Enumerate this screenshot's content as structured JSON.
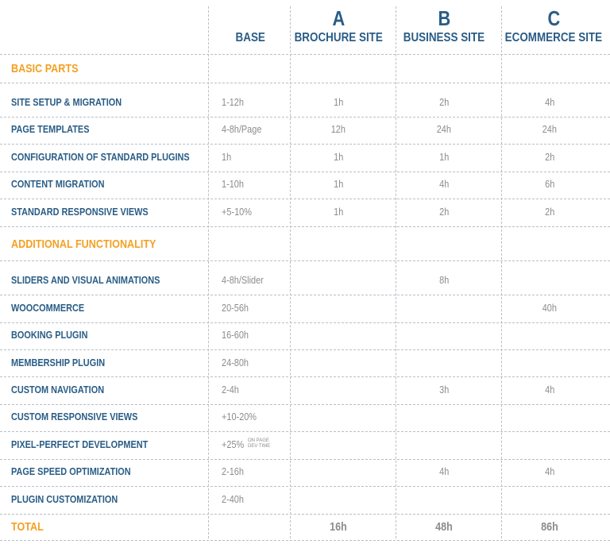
{
  "header": {
    "base_label": "BASE",
    "columns": [
      {
        "letter": "A",
        "label": "BROCHURE SITE"
      },
      {
        "letter": "B",
        "label": "BUSINESS SITE"
      },
      {
        "letter": "C",
        "label": "ECOMMERCE SITE"
      }
    ]
  },
  "sections": [
    {
      "title": "BASIC PARTS",
      "rows": [
        {
          "name": "SITE SETUP & MIGRATION",
          "base": "1-12h",
          "a": "1h",
          "b": "2h",
          "c": "4h"
        },
        {
          "name": "PAGE TEMPLATES",
          "base": "4-8h/Page",
          "a": "12h",
          "b": "24h",
          "c": "24h"
        },
        {
          "name": "CONFIGURATION OF STANDARD PLUGINS",
          "base": "1h",
          "a": "1h",
          "b": "1h",
          "c": "2h"
        },
        {
          "name": "CONTENT MIGRATION",
          "base": "1-10h",
          "a": "1h",
          "b": "4h",
          "c": "6h"
        },
        {
          "name": "STANDARD RESPONSIVE VIEWS",
          "base": "+5-10%",
          "a": "1h",
          "b": "2h",
          "c": "2h"
        }
      ]
    },
    {
      "title": "ADDITIONAL FUNCTIONALITY",
      "rows": [
        {
          "name": "SLIDERS AND VISUAL ANIMATIONS",
          "base": "4-8h/Slider",
          "a": "",
          "b": "8h",
          "c": ""
        },
        {
          "name": "WOOCOMMERCE",
          "base": "20-56h",
          "a": "",
          "b": "",
          "c": "40h"
        },
        {
          "name": "BOOKING PLUGIN",
          "base": "16-60h",
          "a": "",
          "b": "",
          "c": ""
        },
        {
          "name": "MEMBERSHIP PLUGIN",
          "base": "24-80h",
          "a": "",
          "b": "",
          "c": ""
        },
        {
          "name": "CUSTOM NAVIGATION",
          "base": "2-4h",
          "a": "",
          "b": "3h",
          "c": "4h"
        },
        {
          "name": "CUSTOM RESPONSIVE VIEWS",
          "base": "+10-20%",
          "a": "",
          "b": "",
          "c": ""
        },
        {
          "name": "PIXEL-PERFECT DEVELOPMENT",
          "base": "+25%",
          "note_line1": "ON PAGE",
          "note_line2": "DEV TIME",
          "a": "",
          "b": "",
          "c": ""
        },
        {
          "name": "PAGE SPEED OPTIMIZATION",
          "base": "2-16h",
          "a": "",
          "b": "4h",
          "c": "4h"
        },
        {
          "name": "PLUGIN CUSTOMIZATION",
          "base": "2-40h",
          "a": "",
          "b": "",
          "c": ""
        }
      ]
    }
  ],
  "total": {
    "label": "TOTAL",
    "a": "16h",
    "b": "48h",
    "c": "86h"
  },
  "colors": {
    "header_blue": "#2a5d86",
    "section_orange": "#f4a024",
    "value_gray": "#8c8c8c",
    "divider": "#b9bfc6"
  }
}
